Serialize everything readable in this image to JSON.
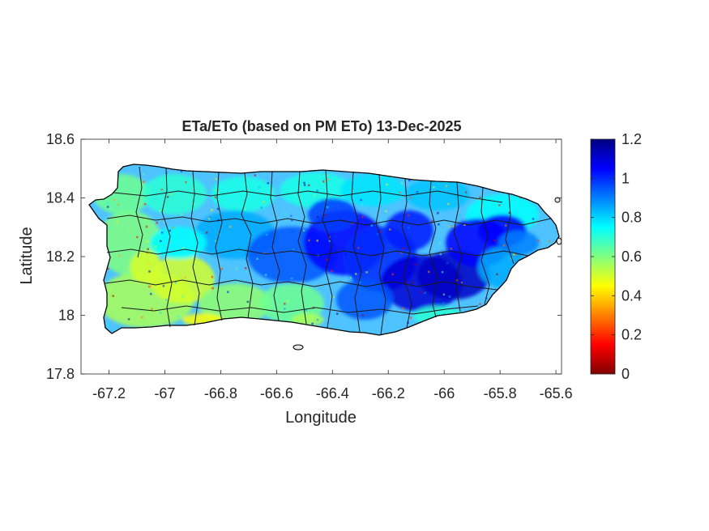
{
  "chart_data": {
    "type": "heatmap",
    "title": "ETa/ETo (based on PM ETo) 13-Dec-2025",
    "xlabel": "Longitude",
    "ylabel": "Latitude",
    "xlim": [
      -67.3,
      -65.58
    ],
    "ylim": [
      17.8,
      18.6
    ],
    "xticks": [
      -67.2,
      -67,
      -66.8,
      -66.6,
      -66.4,
      -66.2,
      -66,
      -65.8,
      -65.6
    ],
    "yticks": [
      17.8,
      18,
      18.2,
      18.4,
      18.6
    ],
    "xtick_labels": [
      "-67.2",
      "-67",
      "-66.8",
      "-66.6",
      "-66.4",
      "-66.2",
      "-66",
      "-65.8",
      "-65.6"
    ],
    "ytick_labels": [
      "17.8",
      "18",
      "18.2",
      "18.4",
      "18.6"
    ],
    "colorbar": {
      "clim": [
        0,
        1.2
      ],
      "ticks": [
        0,
        0.2,
        0.4,
        0.6,
        0.8,
        1,
        1.2
      ],
      "tick_labels": [
        "0",
        "0.2",
        "0.4",
        "0.6",
        "0.8",
        "1",
        "1.2"
      ],
      "colormap": "jet"
    },
    "grid": false
  }
}
